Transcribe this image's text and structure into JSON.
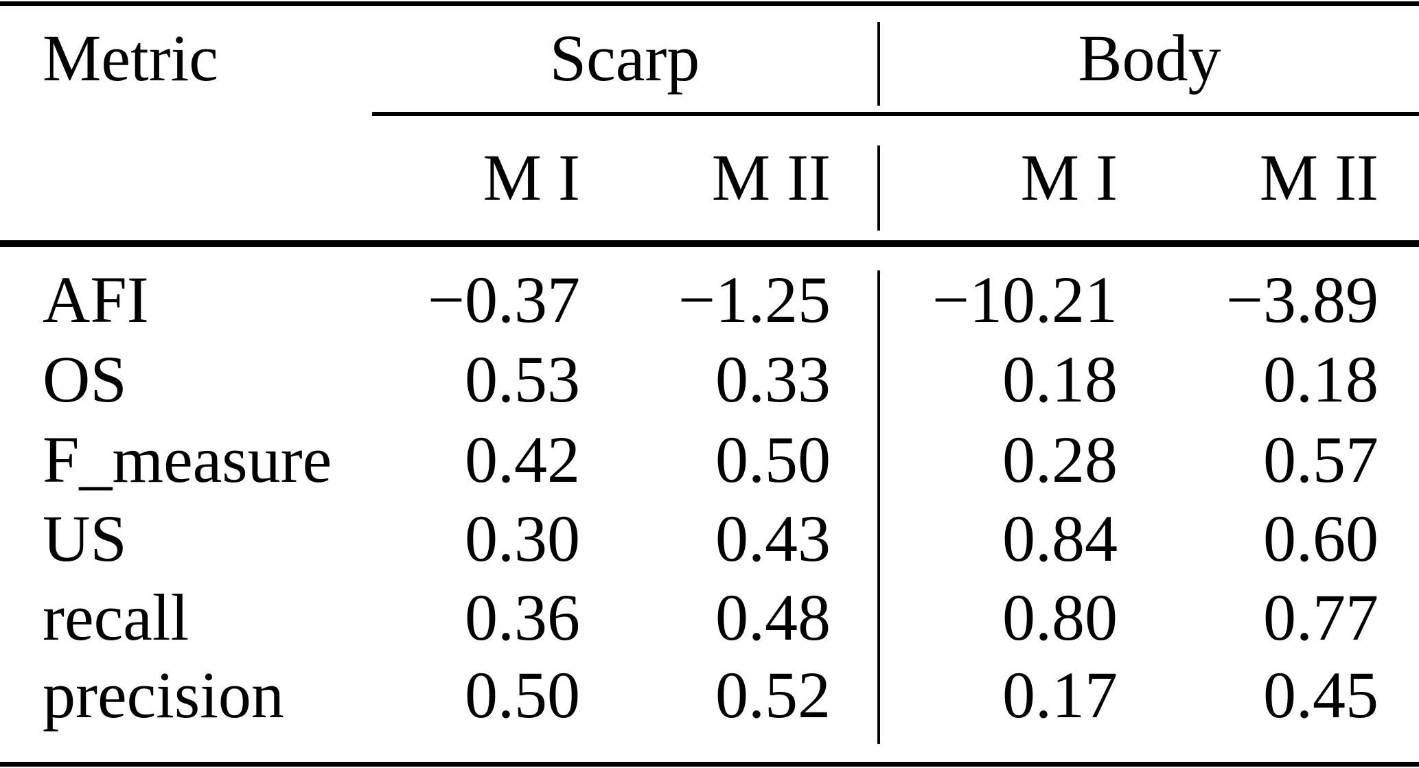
{
  "table": {
    "metric_header": "Metric",
    "groups": [
      {
        "label": "Scarp",
        "subcols": [
          "M I",
          "M II"
        ]
      },
      {
        "label": "Body",
        "subcols": [
          "M I",
          "M II"
        ]
      }
    ],
    "rows": [
      {
        "metric": "AFI",
        "values": [
          "−0.37",
          "−1.25",
          "−10.21",
          "−3.89"
        ]
      },
      {
        "metric": "OS",
        "values": [
          "0.53",
          "0.33",
          "0.18",
          "0.18"
        ]
      },
      {
        "metric": "F_measure",
        "values": [
          "0.42",
          "0.50",
          "0.28",
          "0.57"
        ]
      },
      {
        "metric": "US",
        "values": [
          "0.30",
          "0.43",
          "0.84",
          "0.60"
        ]
      },
      {
        "metric": "recall",
        "values": [
          "0.36",
          "0.48",
          "0.80",
          "0.77"
        ]
      },
      {
        "metric": "precision",
        "values": [
          "0.50",
          "0.52",
          "0.17",
          "0.45"
        ]
      }
    ],
    "colors": {
      "text": "#000000",
      "background": "#ffffff",
      "rule": "#000000"
    }
  },
  "chart_data": {
    "type": "table",
    "title": "",
    "columns": [
      "Metric",
      "Scarp M I",
      "Scarp M II",
      "Body M I",
      "Body M II"
    ],
    "rows": [
      [
        "AFI",
        -0.37,
        -1.25,
        -10.21,
        -3.89
      ],
      [
        "OS",
        0.53,
        0.33,
        0.18,
        0.18
      ],
      [
        "F_measure",
        0.42,
        0.5,
        0.28,
        0.57
      ],
      [
        "US",
        0.3,
        0.43,
        0.84,
        0.6
      ],
      [
        "recall",
        0.36,
        0.48,
        0.8,
        0.77
      ],
      [
        "precision",
        0.5,
        0.52,
        0.17,
        0.45
      ]
    ]
  }
}
